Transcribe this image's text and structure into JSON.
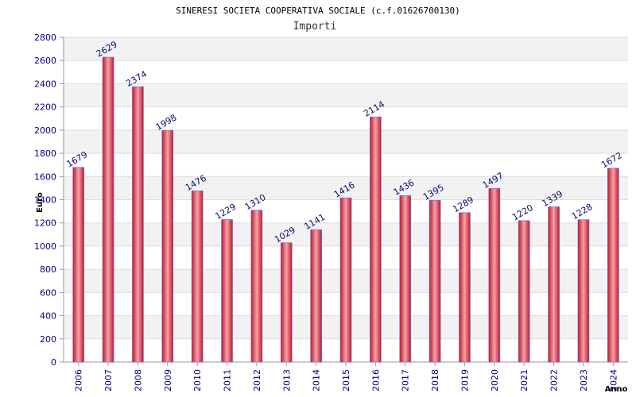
{
  "chart_data": {
    "type": "bar",
    "title": "SINERESI SOCIETA COOPERATIVA SOCIALE (c.f.01626700130)",
    "subtitle": "Importi",
    "xlabel": "Anno",
    "ylabel": "Euro",
    "ylim": [
      0,
      2800
    ],
    "ytick_step": 200,
    "grid": true,
    "categories": [
      "2006",
      "2007",
      "2008",
      "2009",
      "2010",
      "2011",
      "2012",
      "2013",
      "2014",
      "2015",
      "2016",
      "2017",
      "2018",
      "2019",
      "2020",
      "2021",
      "2022",
      "2023",
      "2024"
    ],
    "series": [
      {
        "name": "Importi",
        "values": [
          1679,
          2629,
          2374,
          1998,
          1476,
          1229,
          1310,
          1029,
          1141,
          1416,
          2114,
          1436,
          1395,
          1289,
          1497,
          1220,
          1339,
          1228,
          1672
        ]
      }
    ],
    "colors": {
      "bar_edge": "#c0182a",
      "bar_center": "#f4a2a8",
      "bar_outline": "#6a6ad8",
      "band": "#f2f2f2",
      "gridline": "#dddddd",
      "axis": "#9a9a9a"
    }
  }
}
